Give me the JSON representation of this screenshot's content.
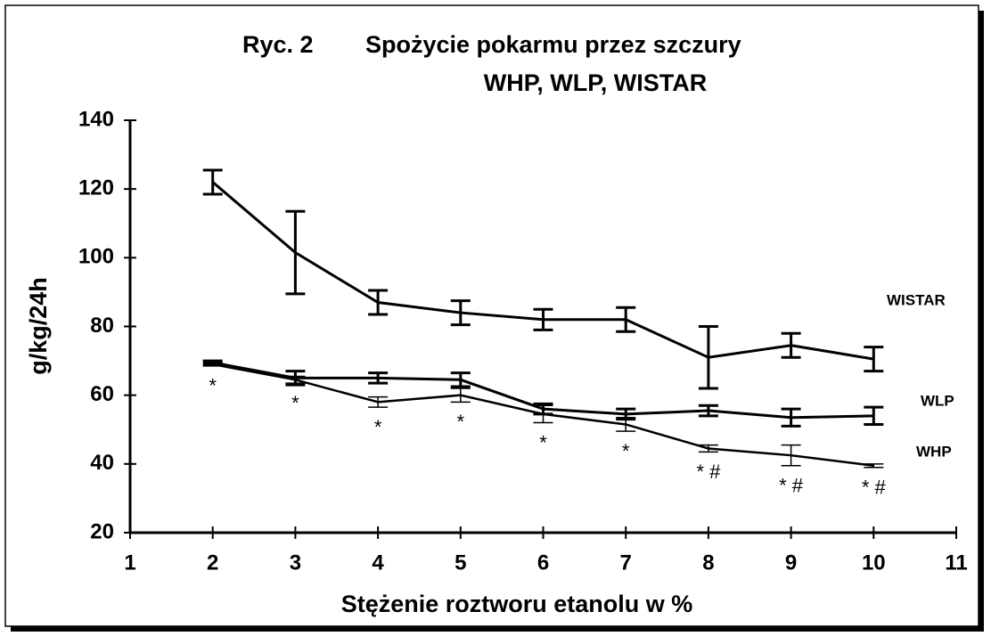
{
  "chart_data": {
    "type": "line",
    "figure_label": "Ryc. 2",
    "title": "Spożycie pokarmu przez szczury",
    "subtitle": "WHP, WLP, WISTAR",
    "x_label": "Stężenie roztworu etanolu w %",
    "y_label": "g/kg/24h",
    "x": [
      2,
      3,
      4,
      5,
      6,
      7,
      8,
      9,
      10
    ],
    "xlim": [
      1,
      11
    ],
    "xticks": [
      1,
      2,
      3,
      4,
      5,
      6,
      7,
      8,
      9,
      10,
      11
    ],
    "ylim": [
      20,
      140
    ],
    "yticks": [
      20,
      40,
      60,
      80,
      100,
      120,
      140
    ],
    "grid": false,
    "series": [
      {
        "name": "WISTAR",
        "color": "#000000",
        "values": [
          122,
          101.5,
          87,
          84,
          82,
          82,
          71,
          74.5,
          70.5
        ],
        "errors": [
          3.5,
          12,
          3.5,
          3.5,
          3,
          3.5,
          9,
          3.5,
          3.5
        ]
      },
      {
        "name": "WLP",
        "color": "#000000",
        "values": [
          69.5,
          65,
          65,
          64.5,
          56,
          54.5,
          55.5,
          53.5,
          54
        ],
        "errors": [
          0.5,
          2,
          1.5,
          2,
          1.5,
          1.5,
          1.5,
          2.5,
          2.5
        ]
      },
      {
        "name": "WHP",
        "color": "#000000",
        "values": [
          69,
          64.5,
          58,
          60,
          54.5,
          51.5,
          44.5,
          42.5,
          39.5
        ],
        "errors": [
          0.5,
          1,
          1.5,
          2,
          2.5,
          2,
          1,
          3,
          0.5
        ]
      }
    ],
    "annotations": [
      {
        "x": 2,
        "text": "*"
      },
      {
        "x": 3,
        "text": "*"
      },
      {
        "x": 4,
        "text": "*"
      },
      {
        "x": 5,
        "text": "*"
      },
      {
        "x": 6,
        "text": "*"
      },
      {
        "x": 7,
        "text": "*"
      },
      {
        "x": 8,
        "text": "* #"
      },
      {
        "x": 9,
        "text": "* #"
      },
      {
        "x": 10,
        "text": "* #"
      }
    ]
  }
}
